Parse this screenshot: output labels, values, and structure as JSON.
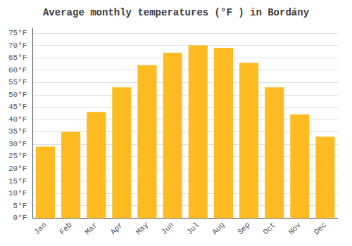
{
  "chart_data": {
    "type": "bar",
    "title": "Average monthly temperatures (°F ) in Bordány",
    "categories": [
      "Jan",
      "Feb",
      "Mar",
      "Apr",
      "May",
      "Jun",
      "Jul",
      "Aug",
      "Sep",
      "Oct",
      "Nov",
      "Dec"
    ],
    "values": [
      29,
      35,
      43,
      53,
      62,
      67,
      70,
      69,
      63,
      53,
      42,
      33
    ],
    "color": "#FFBB22",
    "ylim": [
      0,
      77
    ],
    "yticks": [
      {
        "value": 0,
        "label": "0°F"
      },
      {
        "value": 5,
        "label": "5°F"
      },
      {
        "value": 10,
        "label": "10°F"
      },
      {
        "value": 15,
        "label": "15°F"
      },
      {
        "value": 20,
        "label": "20°F"
      },
      {
        "value": 25,
        "label": "25°F"
      },
      {
        "value": 30,
        "label": "30°F"
      },
      {
        "value": 35,
        "label": "35°F"
      },
      {
        "value": 40,
        "label": "40°F"
      },
      {
        "value": 45,
        "label": "45°F"
      },
      {
        "value": 50,
        "label": "50°F"
      },
      {
        "value": 55,
        "label": "55°F"
      },
      {
        "value": 60,
        "label": "60°F"
      },
      {
        "value": 65,
        "label": "65°F"
      },
      {
        "value": 70,
        "label": "70°F"
      },
      {
        "value": 75,
        "label": "75°F"
      }
    ],
    "grid": true
  }
}
